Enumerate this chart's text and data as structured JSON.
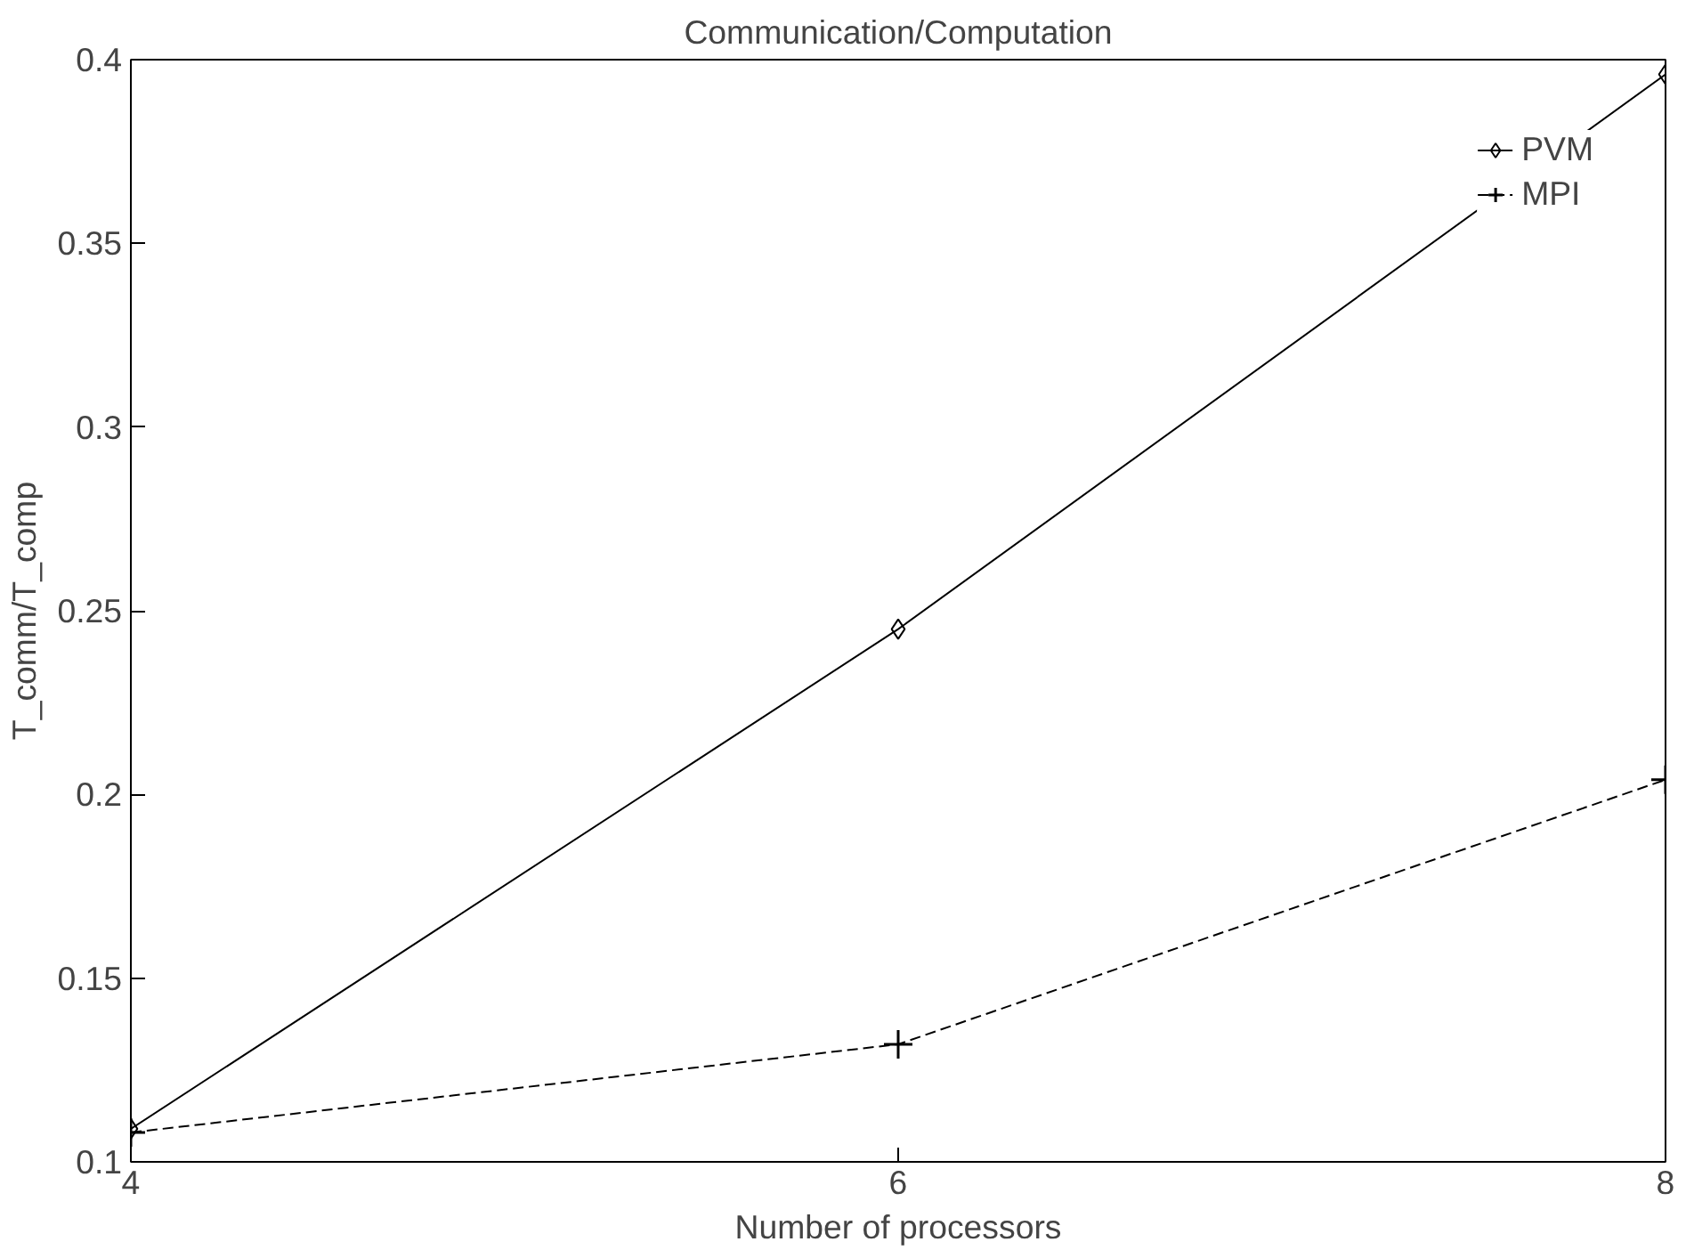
{
  "chart_data": {
    "type": "line",
    "title": "Communication/Computation",
    "xlabel": "Number of processors",
    "ylabel": "T_comm/T_comp",
    "x": [
      4,
      6,
      8
    ],
    "series": [
      {
        "name": "PVM",
        "color": "#000000",
        "values": [
          0.109,
          0.245,
          0.396
        ],
        "marker": "diamond",
        "line_style": "solid"
      },
      {
        "name": "MPI",
        "color": "#000000",
        "values": [
          0.108,
          0.132,
          0.204
        ],
        "marker": "cross",
        "line_style": "dashed"
      }
    ],
    "xlim": [
      4,
      8
    ],
    "xticks": [
      4,
      6,
      8
    ],
    "ylim": [
      0.1,
      0.4
    ],
    "yticks": [
      0.1,
      0.15,
      0.2,
      0.25,
      0.3,
      0.35,
      0.4
    ],
    "grid": false,
    "legend": "top right"
  }
}
